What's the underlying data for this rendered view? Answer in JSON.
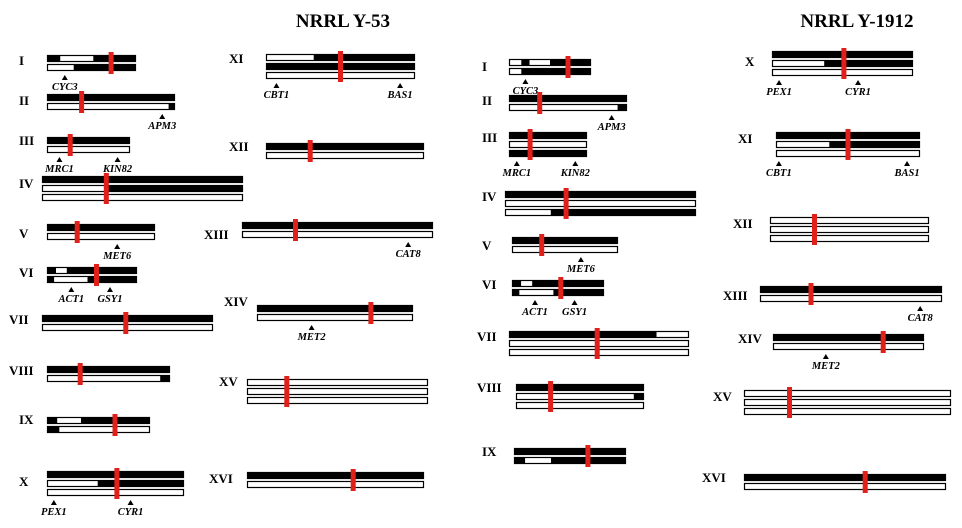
{
  "colors": {
    "filled": "#000000",
    "empty": "#ffffff",
    "outline": "#000000",
    "centromere": "#e0201b"
  },
  "panels": [
    {
      "title": "NRRL Y-53",
      "chromosomes": [
        {
          "label": "I",
          "genes": [
            "CYC3"
          ],
          "chromatids": [
            [
              [
                "b",
                0,
                0.15
              ],
              [
                "w",
                0.15,
                0.52
              ],
              [
                "b",
                0.52,
                1
              ]
            ],
            [
              [
                "w",
                0,
                0.3
              ],
              [
                "b",
                0.3,
                1
              ]
            ]
          ]
        },
        {
          "label": "II",
          "genes": [
            "APM3"
          ],
          "chromatids": [
            [
              [
                "b",
                0,
                1
              ]
            ],
            [
              [
                "w",
                0,
                0.95
              ],
              [
                "b",
                0.95,
                1
              ]
            ]
          ]
        },
        {
          "label": "III",
          "genes": [
            "MRC1",
            "KIN82"
          ],
          "chromatids": [
            [
              [
                "b",
                0,
                1
              ]
            ],
            [
              [
                "w",
                0,
                1
              ]
            ]
          ]
        },
        {
          "label": "IV",
          "genes": [],
          "chromatids": [
            [
              [
                "b",
                0,
                1
              ]
            ],
            [
              [
                "w",
                0,
                0.33
              ],
              [
                "b",
                0.33,
                1
              ]
            ],
            [
              [
                "w",
                0,
                1
              ]
            ]
          ]
        },
        {
          "label": "V",
          "genes": [
            "MET6"
          ],
          "chromatids": [
            [
              [
                "b",
                0,
                1
              ]
            ],
            [
              [
                "w",
                0,
                1
              ]
            ]
          ]
        },
        {
          "label": "VI",
          "genes": [
            "ACT1",
            "GSY1"
          ],
          "chromatids": [
            [
              [
                "b",
                0,
                0.1
              ],
              [
                "w",
                0.1,
                0.22
              ],
              [
                "b",
                0.22,
                1
              ]
            ],
            [
              [
                "b",
                0,
                0.08
              ],
              [
                "w",
                0.08,
                0.45
              ],
              [
                "b",
                0.45,
                1
              ]
            ]
          ]
        },
        {
          "label": "VII",
          "genes": [],
          "chromatids": [
            [
              [
                "b",
                0,
                1
              ]
            ],
            [
              [
                "w",
                0,
                1
              ]
            ]
          ]
        },
        {
          "label": "VIII",
          "genes": [],
          "chromatids": [
            [
              [
                "b",
                0,
                1
              ]
            ],
            [
              [
                "w",
                0,
                0.92
              ],
              [
                "b",
                0.92,
                1
              ]
            ]
          ]
        },
        {
          "label": "IX",
          "genes": [],
          "chromatids": [
            [
              [
                "b",
                0,
                0.1
              ],
              [
                "w",
                0.1,
                0.33
              ],
              [
                "b",
                0.33,
                1
              ]
            ],
            [
              [
                "b",
                0,
                0.12
              ],
              [
                "w",
                0.12,
                1
              ]
            ]
          ]
        },
        {
          "label": "X",
          "genes": [
            "PEX1",
            "CYR1"
          ],
          "chromatids": [
            [
              [
                "b",
                0,
                1
              ]
            ],
            [
              [
                "w",
                0,
                0.37
              ],
              [
                "b",
                0.37,
                1
              ]
            ],
            [
              [
                "w",
                0,
                1
              ]
            ]
          ]
        },
        {
          "label": "XI",
          "genes": [
            "CBT1",
            "BAS1"
          ],
          "chromatids": [
            [
              [
                "w",
                0,
                0.32
              ],
              [
                "b",
                0.32,
                1
              ]
            ],
            [
              [
                "b",
                0,
                1
              ]
            ],
            [
              [
                "w",
                0,
                1
              ]
            ]
          ]
        },
        {
          "label": "XII",
          "genes": [],
          "chromatids": [
            [
              [
                "b",
                0,
                1
              ]
            ],
            [
              [
                "w",
                0,
                1
              ]
            ]
          ]
        },
        {
          "label": "XIII",
          "genes": [
            "CAT8"
          ],
          "chromatids": [
            [
              [
                "b",
                0,
                1
              ]
            ],
            [
              [
                "w",
                0,
                1
              ]
            ]
          ]
        },
        {
          "label": "XIV",
          "genes": [
            "MET2"
          ],
          "chromatids": [
            [
              [
                "b",
                0,
                1
              ]
            ],
            [
              [
                "w",
                0,
                1
              ]
            ]
          ]
        },
        {
          "label": "XV",
          "genes": [],
          "chromatids": [
            [
              [
                "w",
                0,
                1
              ]
            ],
            [
              [
                "w",
                0,
                1
              ]
            ],
            [
              [
                "w",
                0,
                1
              ]
            ]
          ]
        },
        {
          "label": "XVI",
          "genes": [],
          "chromatids": [
            [
              [
                "b",
                0,
                1
              ]
            ],
            [
              [
                "w",
                0,
                1
              ]
            ]
          ]
        }
      ]
    },
    {
      "title": "NRRL Y-1912",
      "chromosomes": [
        {
          "label": "I",
          "genes": [
            "CYC3"
          ],
          "chromatids": [
            [
              [
                "w",
                0,
                0.15
              ],
              [
                "b",
                0.15,
                0.25
              ],
              [
                "w",
                0.25,
                0.5
              ],
              [
                "b",
                0.5,
                1
              ]
            ],
            [
              [
                "w",
                0,
                0.15
              ],
              [
                "b",
                0.15,
                1
              ]
            ]
          ]
        },
        {
          "label": "II",
          "genes": [
            "APM3"
          ],
          "chromatids": [
            [
              [
                "b",
                0,
                1
              ]
            ],
            [
              [
                "w",
                0,
                0.92
              ],
              [
                "b",
                0.92,
                1
              ]
            ]
          ]
        },
        {
          "label": "III",
          "genes": [
            "MRC1",
            "KIN82"
          ],
          "chromatids": [
            [
              [
                "b",
                0,
                1
              ]
            ],
            [
              [
                "w",
                0,
                1
              ]
            ],
            [
              [
                "b",
                0,
                1
              ]
            ]
          ]
        },
        {
          "label": "IV",
          "genes": [],
          "chromatids": [
            [
              [
                "b",
                0,
                1
              ]
            ],
            [
              [
                "w",
                0,
                1
              ]
            ],
            [
              [
                "w",
                0,
                0.24
              ],
              [
                "b",
                0.24,
                1
              ]
            ]
          ]
        },
        {
          "label": "V",
          "genes": [
            "MET6"
          ],
          "chromatids": [
            [
              [
                "b",
                0,
                1
              ]
            ],
            [
              [
                "w",
                0,
                1
              ]
            ]
          ]
        },
        {
          "label": "VI",
          "genes": [
            "ACT1",
            "GSY1"
          ],
          "chromatids": [
            [
              [
                "b",
                0,
                0.1
              ],
              [
                "w",
                0.1,
                0.22
              ],
              [
                "b",
                0.22,
                1
              ]
            ],
            [
              [
                "b",
                0,
                0.08
              ],
              [
                "w",
                0.08,
                0.45
              ],
              [
                "b",
                0.45,
                1
              ]
            ]
          ]
        },
        {
          "label": "VII",
          "genes": [],
          "chromatids": [
            [
              [
                "b",
                0,
                0.82
              ],
              [
                "w",
                0.82,
                1
              ]
            ],
            [
              [
                "w",
                0,
                1
              ]
            ],
            [
              [
                "w",
                0,
                1
              ]
            ]
          ]
        },
        {
          "label": "VIII",
          "genes": [],
          "chromatids": [
            [
              [
                "b",
                0,
                1
              ]
            ],
            [
              [
                "w",
                0,
                0.92
              ],
              [
                "b",
                0.92,
                1
              ]
            ],
            [
              [
                "w",
                0,
                1
              ]
            ]
          ]
        },
        {
          "label": "IX",
          "genes": [],
          "chromatids": [
            [
              [
                "b",
                0,
                1
              ]
            ],
            [
              [
                "b",
                0,
                0.1
              ],
              [
                "w",
                0.1,
                0.33
              ],
              [
                "b",
                0.33,
                1
              ]
            ]
          ]
        },
        {
          "label": "X",
          "genes": [
            "PEX1",
            "CYR1"
          ],
          "chromatids": [
            [
              [
                "b",
                0,
                1
              ]
            ],
            [
              [
                "w",
                0,
                0.37
              ],
              [
                "b",
                0.37,
                1
              ]
            ],
            [
              [
                "w",
                0,
                1
              ]
            ]
          ]
        },
        {
          "label": "XI",
          "genes": [
            "CBT1",
            "BAS1"
          ],
          "chromatids": [
            [
              [
                "b",
                0,
                1
              ]
            ],
            [
              [
                "w",
                0,
                0.37
              ],
              [
                "b",
                0.37,
                1
              ]
            ],
            [
              [
                "w",
                0,
                1
              ]
            ]
          ]
        },
        {
          "label": "XII",
          "genes": [],
          "chromatids": [
            [
              [
                "w",
                0,
                1
              ]
            ],
            [
              [
                "w",
                0,
                1
              ]
            ],
            [
              [
                "w",
                0,
                1
              ]
            ]
          ]
        },
        {
          "label": "XIII",
          "genes": [
            "CAT8"
          ],
          "chromatids": [
            [
              [
                "b",
                0,
                1
              ]
            ],
            [
              [
                "w",
                0,
                1
              ]
            ]
          ]
        },
        {
          "label": "XIV",
          "genes": [
            "MET2"
          ],
          "chromatids": [
            [
              [
                "b",
                0,
                1
              ]
            ],
            [
              [
                "w",
                0,
                1
              ]
            ]
          ]
        },
        {
          "label": "XV",
          "genes": [],
          "chromatids": [
            [
              [
                "w",
                0,
                1
              ]
            ],
            [
              [
                "w",
                0,
                1
              ]
            ],
            [
              [
                "w",
                0,
                1
              ]
            ]
          ]
        },
        {
          "label": "XVI",
          "genes": [],
          "chromatids": [
            [
              [
                "b",
                0,
                1
              ]
            ],
            [
              [
                "w",
                0,
                1
              ]
            ]
          ]
        }
      ]
    }
  ]
}
